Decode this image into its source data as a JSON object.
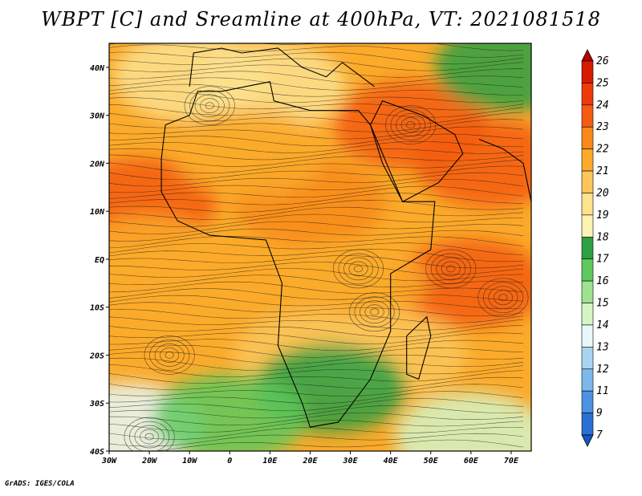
{
  "title": "WBPT [C] and Sreamline at 400hPa, VT: 2021081518",
  "footer": "GrADS: IGES/COLA",
  "map": {
    "lon_range": [
      -30,
      75
    ],
    "lat_range": [
      -40,
      45
    ],
    "lon_ticks": [
      {
        "value": -30,
        "label": "30W"
      },
      {
        "value": -20,
        "label": "20W"
      },
      {
        "value": -10,
        "label": "10W"
      },
      {
        "value": 0,
        "label": "0"
      },
      {
        "value": 10,
        "label": "10E"
      },
      {
        "value": 20,
        "label": "20E"
      },
      {
        "value": 30,
        "label": "30E"
      },
      {
        "value": 40,
        "label": "40E"
      },
      {
        "value": 50,
        "label": "50E"
      },
      {
        "value": 60,
        "label": "60E"
      },
      {
        "value": 70,
        "label": "70E"
      }
    ],
    "lat_ticks": [
      {
        "value": 40,
        "label": "40N"
      },
      {
        "value": 30,
        "label": "30N"
      },
      {
        "value": 20,
        "label": "20N"
      },
      {
        "value": 10,
        "label": "10N"
      },
      {
        "value": 0,
        "label": "EQ"
      },
      {
        "value": -10,
        "label": "10S"
      },
      {
        "value": -20,
        "label": "20S"
      },
      {
        "value": -30,
        "label": "30S"
      },
      {
        "value": -40,
        "label": "40S"
      }
    ]
  },
  "colorbar": {
    "labels": [
      "26",
      "25",
      "24",
      "23",
      "22",
      "21",
      "20",
      "19",
      "18",
      "17",
      "16",
      "15",
      "14",
      "13",
      "12",
      "11",
      "9",
      "7"
    ],
    "colors": [
      "#b30000",
      "#d81a00",
      "#ee3a0b",
      "#f45c12",
      "#f88a1a",
      "#fbaa2a",
      "#fcc65a",
      "#fde28f",
      "#fdf3b4",
      "#2ea043",
      "#5ec95c",
      "#9ee28f",
      "#d4f5c5",
      "#e8f8f8",
      "#a8d4f0",
      "#7cb8ec",
      "#4c92e0",
      "#2a6fd4",
      "#1454c4"
    ]
  },
  "wbpt_field": [
    {
      "lon": -10,
      "lat": 38,
      "value": 19
    },
    {
      "lon": 10,
      "lat": 36,
      "value": 19
    },
    {
      "lon": 45,
      "lat": 28,
      "value": 23
    },
    {
      "lon": 65,
      "lat": 20,
      "value": 23
    },
    {
      "lon": -22,
      "lat": 12,
      "value": 23
    },
    {
      "lon": 20,
      "lat": 12,
      "value": 22
    },
    {
      "lon": 5,
      "lat": 22,
      "value": 21
    },
    {
      "lon": -20,
      "lat": 0,
      "value": 21
    },
    {
      "lon": 60,
      "lat": -5,
      "value": 23
    },
    {
      "lon": 30,
      "lat": -5,
      "value": 21
    },
    {
      "lon": -10,
      "lat": -12,
      "value": 21
    },
    {
      "lon": 40,
      "lat": -20,
      "value": 20
    },
    {
      "lon": 20,
      "lat": -20,
      "value": 20
    },
    {
      "lon": 25,
      "lat": -27,
      "value": 17
    },
    {
      "lon": -25,
      "lat": -35,
      "value": 13
    },
    {
      "lon": 0,
      "lat": -33,
      "value": 16
    },
    {
      "lon": 60,
      "lat": -37,
      "value": 14
    },
    {
      "lon": 70,
      "lat": 40,
      "value": 17
    }
  ]
}
